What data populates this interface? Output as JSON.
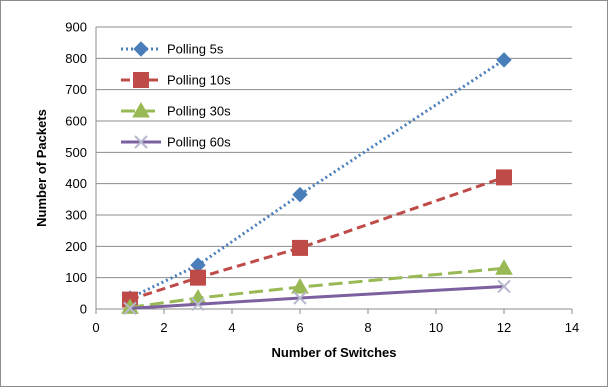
{
  "chart_data": {
    "type": "line",
    "title": "",
    "xlabel": "Number of Switches",
    "ylabel": "Number of Packets",
    "xlim": [
      0,
      14
    ],
    "ylim": [
      0,
      900
    ],
    "xticks": [
      0,
      2,
      4,
      6,
      8,
      10,
      12,
      14
    ],
    "yticks": [
      0,
      100,
      200,
      300,
      400,
      500,
      600,
      700,
      800,
      900
    ],
    "grid": "horizontal",
    "legend": "top-left",
    "series": [
      {
        "name": "Polling 5s",
        "color": "#4a7ebb",
        "dash": "dotted",
        "marker": "diamond",
        "x": [
          1,
          3,
          6,
          12
        ],
        "y": [
          35,
          140,
          365,
          795
        ]
      },
      {
        "name": "Polling 10s",
        "color": "#be4b48",
        "dash": "dashed",
        "marker": "square",
        "x": [
          1,
          3,
          6,
          12
        ],
        "y": [
          30,
          100,
          195,
          420
        ]
      },
      {
        "name": "Polling 30s",
        "color": "#98b954",
        "dash": "longdash",
        "marker": "triangle",
        "x": [
          1,
          3,
          6,
          12
        ],
        "y": [
          5,
          35,
          70,
          130
        ]
      },
      {
        "name": "Polling 60s",
        "color": "#7d60a0",
        "dash": "solid",
        "marker": "x",
        "x": [
          1,
          3,
          6,
          12
        ],
        "y": [
          2,
          15,
          35,
          72
        ]
      }
    ]
  }
}
